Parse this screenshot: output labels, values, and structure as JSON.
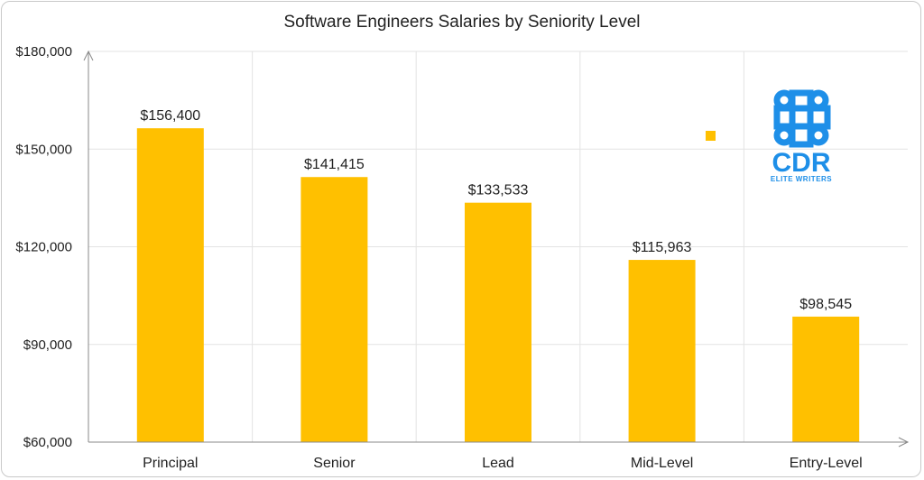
{
  "chart_data": {
    "type": "bar",
    "title": "Software Engineers Salaries by Seniority Level",
    "categories": [
      "Principal",
      "Senior",
      "Lead",
      "Mid-Level",
      "Entry-Level"
    ],
    "values": [
      156400,
      141415,
      133533,
      115963,
      98545
    ],
    "data_labels": [
      "$156,400",
      "$141,415",
      "$133,533",
      "$115,963",
      "$98,545"
    ],
    "y_ticks": [
      60000,
      90000,
      120000,
      150000,
      180000
    ],
    "y_tick_labels": [
      "$60,000",
      "$90,000",
      "$120,000",
      "$150,000",
      "$180,000"
    ],
    "ylim": [
      60000,
      180000
    ],
    "xlabel": "",
    "ylabel": "",
    "grid": true,
    "bar_color": "#FFC000"
  },
  "logo": {
    "name": "CDR",
    "subtitle": "ELITE WRITERS",
    "icon": "command-key-icon",
    "color": "#1E8FE8"
  },
  "legend_marker": {
    "color": "#FFC000"
  }
}
